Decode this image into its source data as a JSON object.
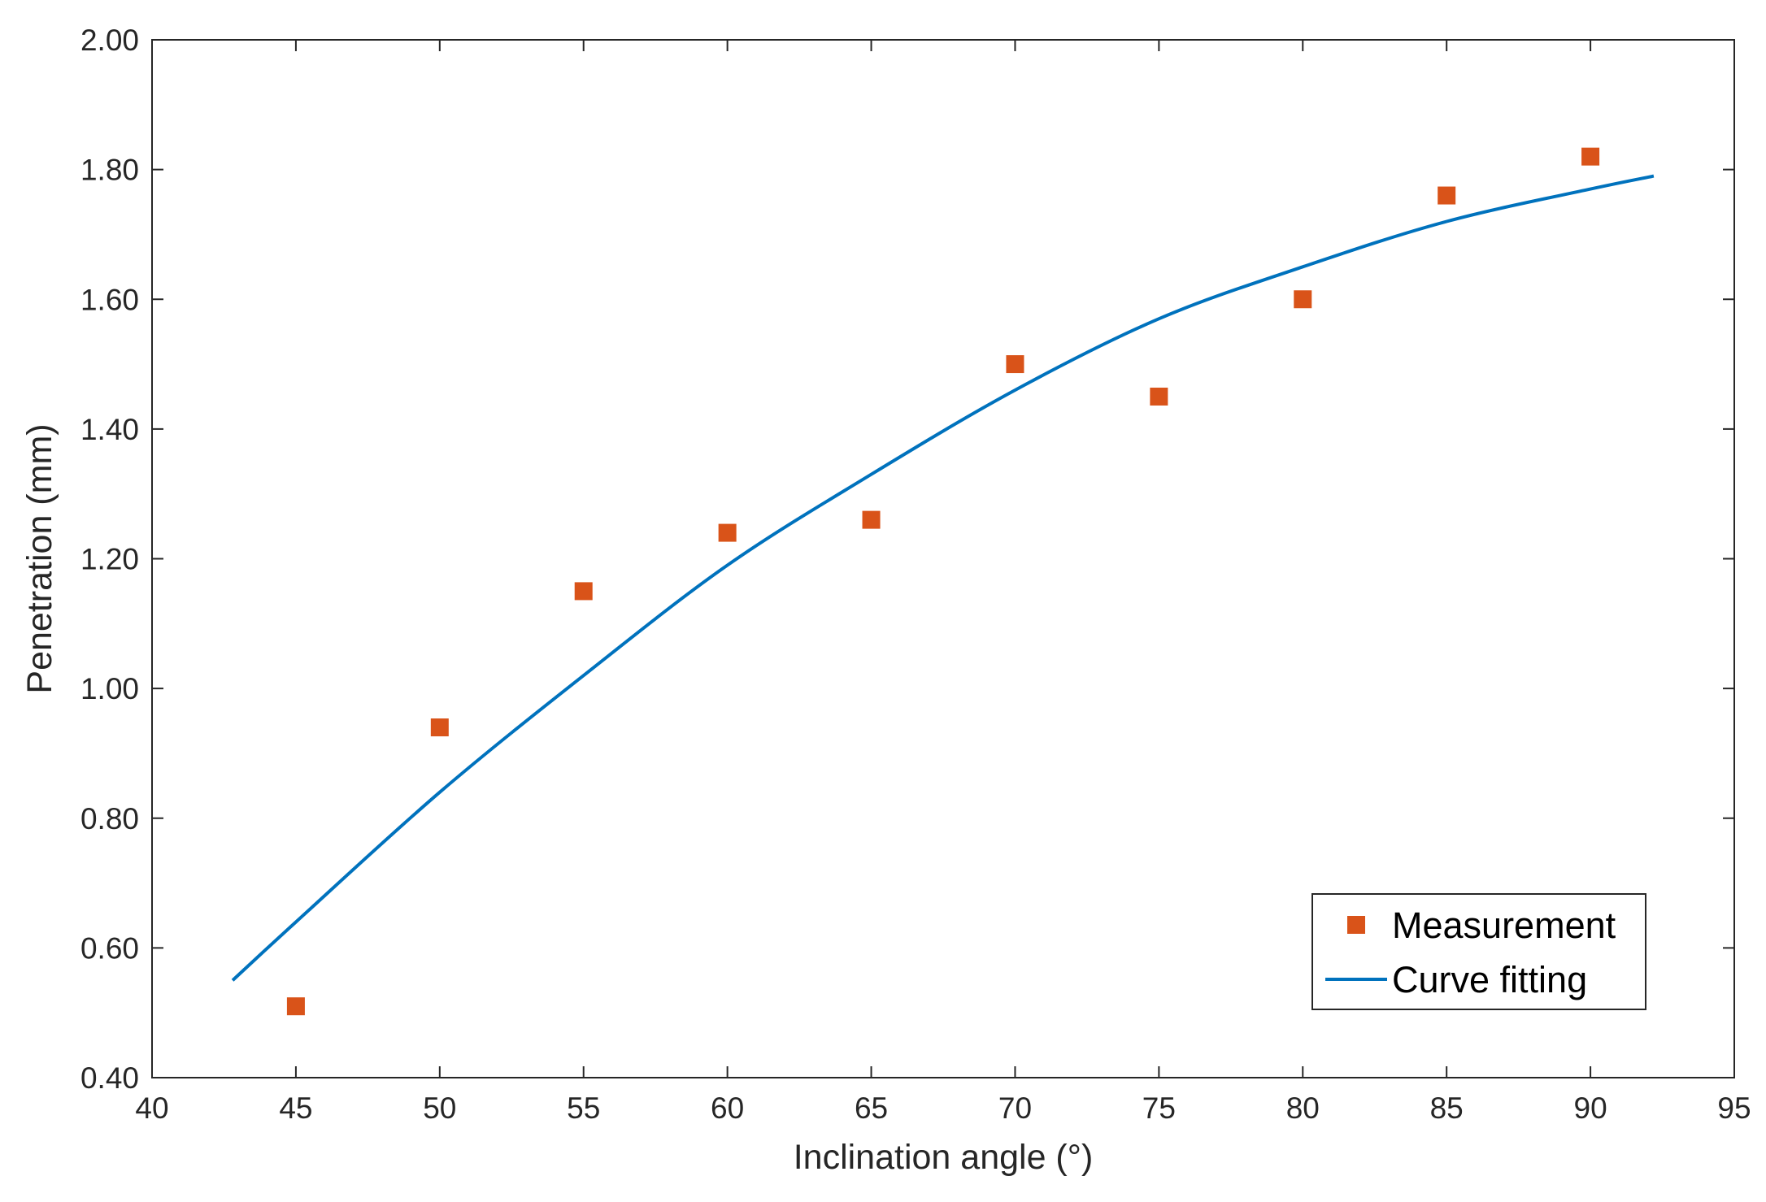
{
  "chart_data": {
    "type": "scatter",
    "title": "",
    "xlabel": "Inclination angle (°)",
    "ylabel": "Penetration (mm)",
    "xlim": [
      40,
      95
    ],
    "ylim": [
      0.4,
      2.0
    ],
    "xticks": [
      40,
      45,
      50,
      55,
      60,
      65,
      70,
      75,
      80,
      85,
      90,
      95
    ],
    "yticks": [
      0.4,
      0.6,
      0.8,
      1.0,
      1.2,
      1.4,
      1.6,
      1.8,
      2.0
    ],
    "ytick_labels": [
      "0.40",
      "0.60",
      "0.80",
      "1.00",
      "1.20",
      "1.40",
      "1.60",
      "1.80",
      "2.00"
    ],
    "grid": false,
    "legend_position": "bottom-right",
    "series": [
      {
        "name": "Measurement",
        "kind": "markers",
        "marker": "square",
        "color": "#D95319",
        "x": [
          45,
          50,
          55,
          60,
          65,
          70,
          75,
          80,
          85,
          90
        ],
        "y": [
          0.51,
          0.94,
          1.15,
          1.24,
          1.26,
          1.5,
          1.45,
          1.6,
          1.76,
          1.82
        ]
      },
      {
        "name": "Curve fitting",
        "kind": "line",
        "color": "#0072BD",
        "x": [
          42.8,
          45,
          50,
          55,
          60,
          65,
          70,
          75,
          80,
          85,
          90,
          92.2
        ],
        "y": [
          0.55,
          0.64,
          0.84,
          1.02,
          1.19,
          1.33,
          1.46,
          1.57,
          1.65,
          1.72,
          1.77,
          1.79
        ]
      }
    ]
  }
}
